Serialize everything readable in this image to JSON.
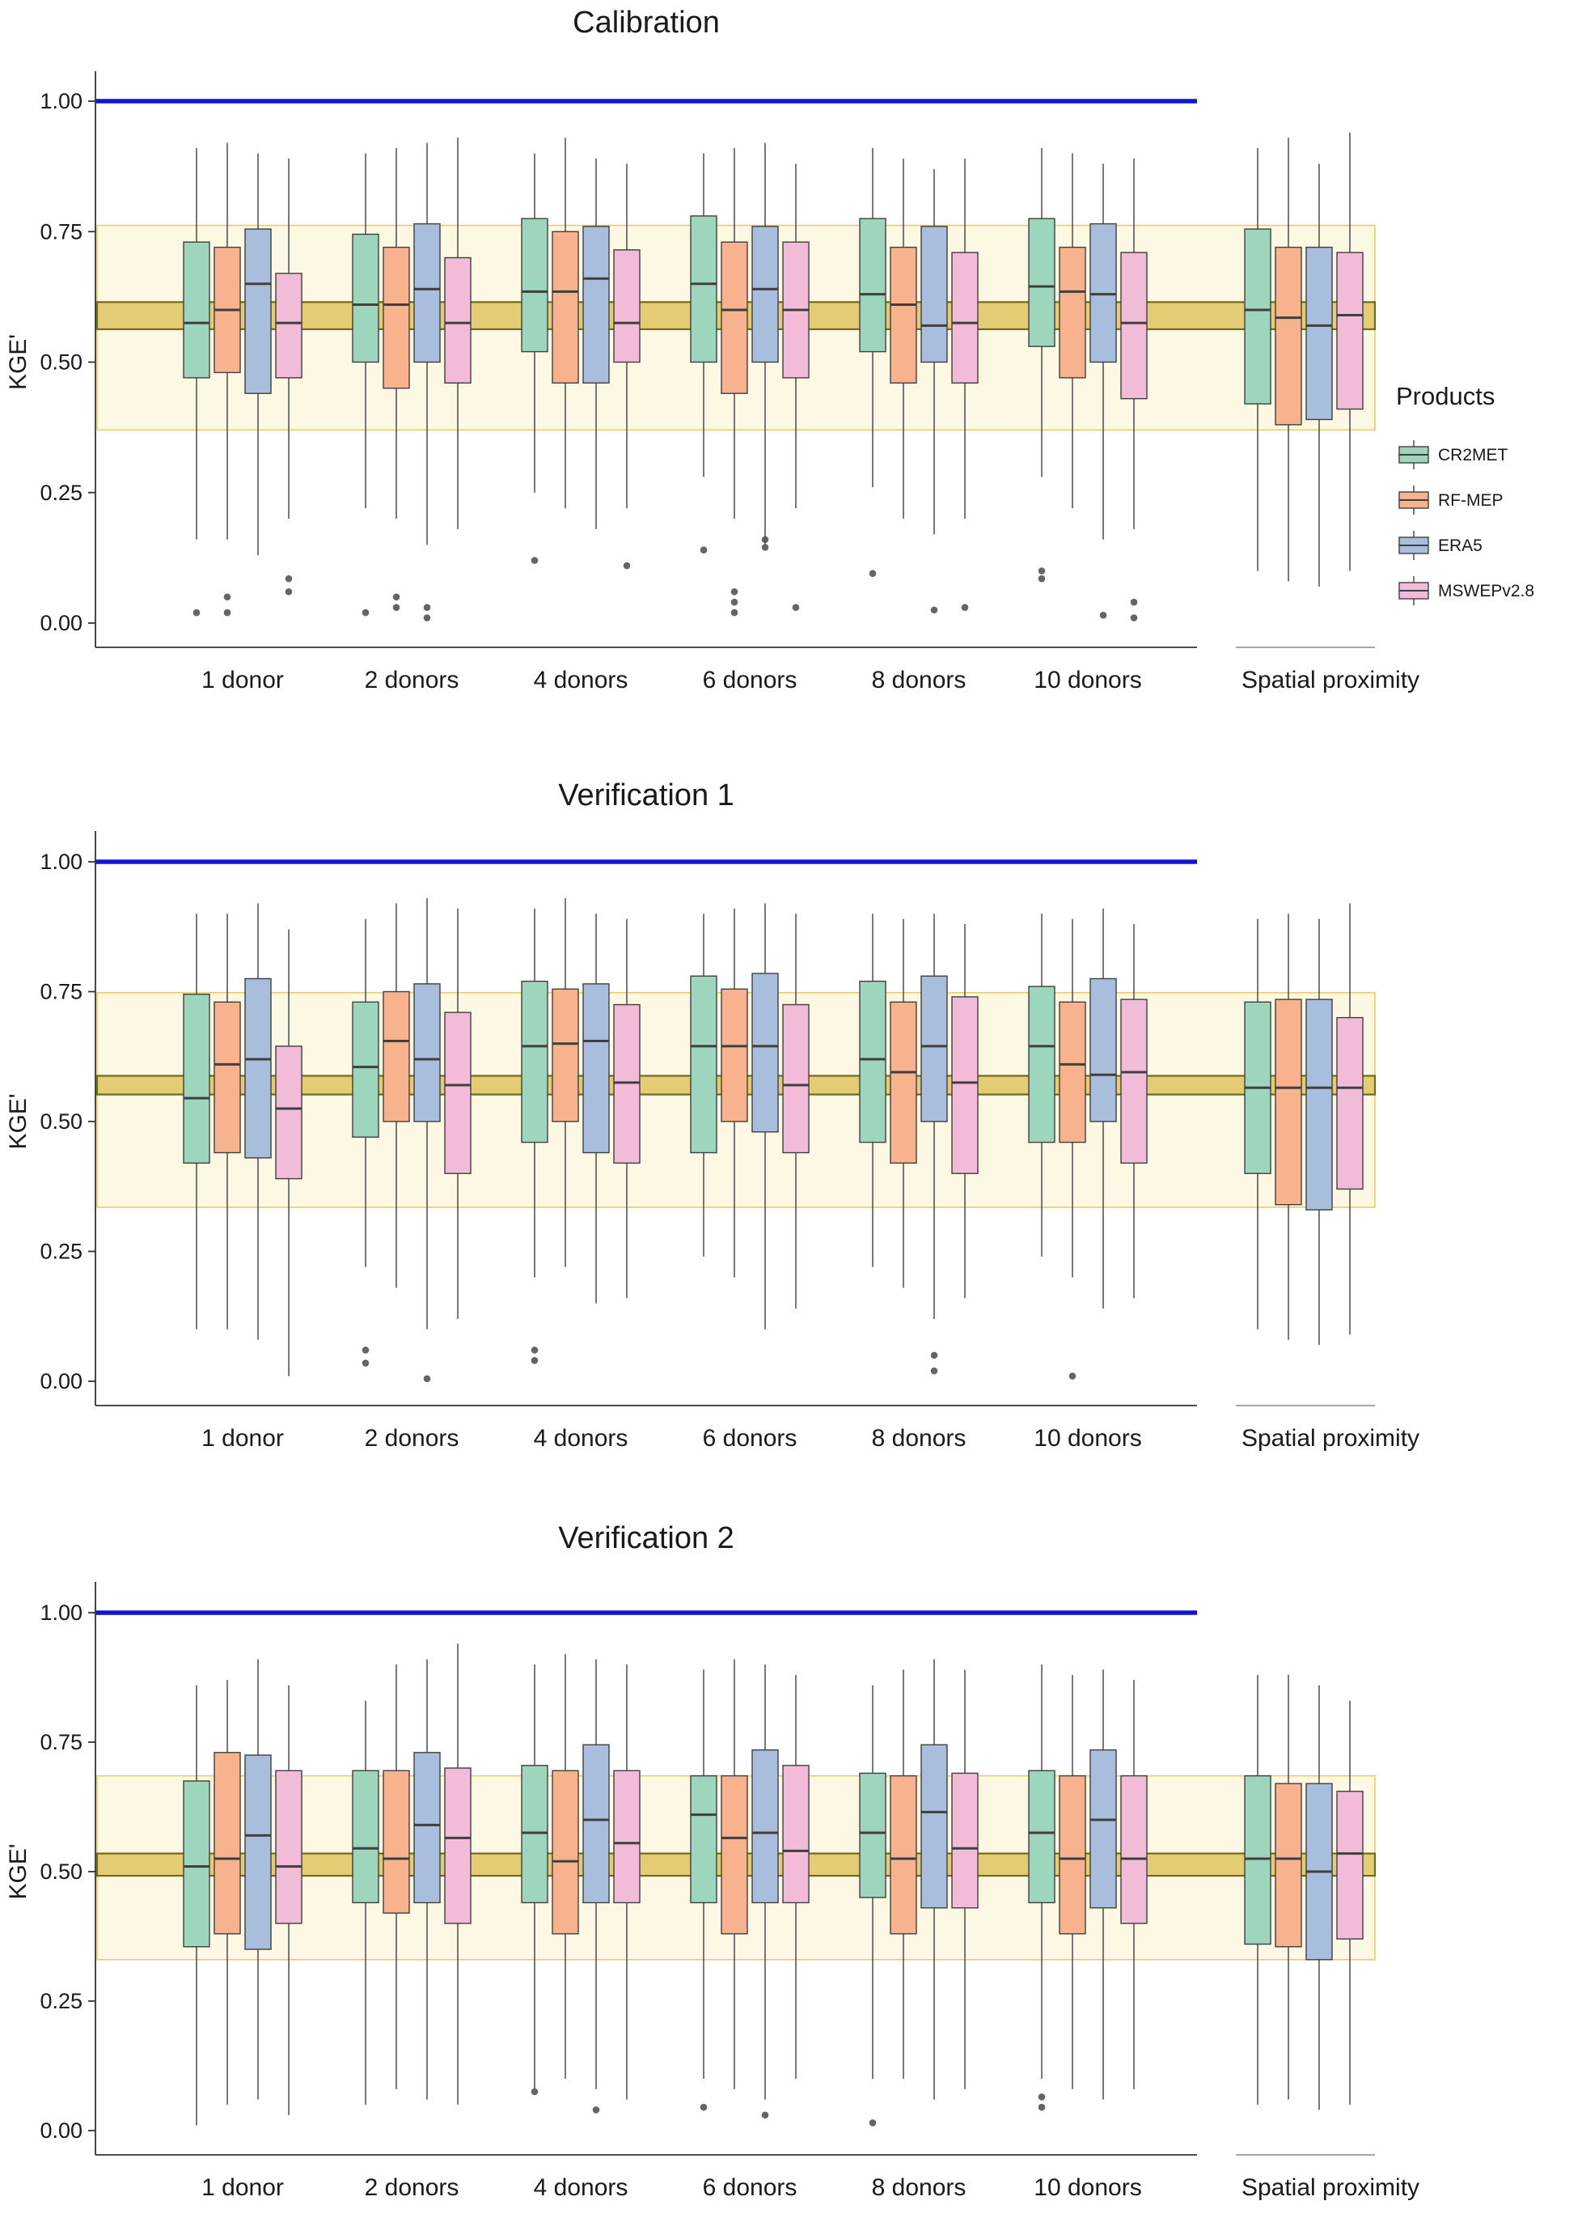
{
  "legend": {
    "title": "Products"
  },
  "products": [
    {
      "label": "CR2MET",
      "color": "#9dd6bd"
    },
    {
      "label": "RF-MEP",
      "color": "#f8b28e"
    },
    {
      "label": "ERA5",
      "color": "#a9bedc"
    },
    {
      "label": "MSWEPv2.8",
      "color": "#f2bcd9"
    }
  ],
  "colors": {
    "reference_blue": "#1414d4",
    "band_fill": "#fcf3cc",
    "band_border": "#edcb66",
    "inner_band_fill": "#dcc157",
    "inner_band_border": "#6f6b1e",
    "box_stroke": "#3f3f3f",
    "outlier": "#545454",
    "axis": "#333333"
  },
  "axis": {
    "y_label": "KGE'",
    "ticks": [
      {
        "label": "1.00",
        "value": 1.0
      },
      {
        "label": "0.75",
        "value": 0.75
      },
      {
        "label": "0.50",
        "value": 0.5
      },
      {
        "label": "0.25",
        "value": 0.25
      },
      {
        "label": "0.00",
        "value": 0.0
      }
    ]
  },
  "chart_data": [
    {
      "type": "boxplot",
      "title": "Calibration",
      "ylabel": "KGE'",
      "ylim": [
        0,
        1.0
      ],
      "reference_line": 1.0,
      "benchmark_band": {
        "outer": [
          0.37,
          0.762
        ],
        "inner": [
          0.563,
          0.615
        ]
      },
      "categories": [
        "1 donor",
        "2 donors",
        "4 donors",
        "6 donors",
        "8 donors",
        "10 donors",
        "Spatial proximity"
      ],
      "series": [
        {
          "name": "CR2MET",
          "boxes": [
            [
              0.16,
              0.47,
              0.575,
              0.73,
              0.91
            ],
            [
              0.22,
              0.5,
              0.61,
              0.745,
              0.9
            ],
            [
              0.25,
              0.52,
              0.635,
              0.775,
              0.9
            ],
            [
              0.28,
              0.5,
              0.65,
              0.78,
              0.9
            ],
            [
              0.26,
              0.52,
              0.63,
              0.775,
              0.91
            ],
            [
              0.28,
              0.53,
              0.645,
              0.775,
              0.91
            ],
            [
              0.1,
              0.42,
              0.6,
              0.755,
              0.91
            ]
          ],
          "outliers": [
            [
              0.02
            ],
            [
              0.02
            ],
            [
              0.12
            ],
            [
              0.14
            ],
            [
              0.095
            ],
            [
              0.085,
              0.1
            ],
            []
          ]
        },
        {
          "name": "RF-MEP",
          "boxes": [
            [
              0.16,
              0.48,
              0.6,
              0.72,
              0.92
            ],
            [
              0.2,
              0.45,
              0.61,
              0.72,
              0.91
            ],
            [
              0.22,
              0.46,
              0.635,
              0.75,
              0.93
            ],
            [
              0.2,
              0.44,
              0.6,
              0.73,
              0.91
            ],
            [
              0.2,
              0.46,
              0.61,
              0.72,
              0.89
            ],
            [
              0.22,
              0.47,
              0.635,
              0.72,
              0.9
            ],
            [
              0.08,
              0.38,
              0.585,
              0.72,
              0.93
            ]
          ],
          "outliers": [
            [
              0.02,
              0.05
            ],
            [
              0.03,
              0.05
            ],
            [],
            [
              0.02,
              0.04,
              0.06
            ],
            [],
            [],
            []
          ]
        },
        {
          "name": "ERA5",
          "boxes": [
            [
              0.13,
              0.44,
              0.65,
              0.755,
              0.9
            ],
            [
              0.15,
              0.5,
              0.64,
              0.765,
              0.92
            ],
            [
              0.18,
              0.46,
              0.66,
              0.76,
              0.89
            ],
            [
              0.15,
              0.5,
              0.64,
              0.76,
              0.92
            ],
            [
              0.17,
              0.5,
              0.57,
              0.76,
              0.87
            ],
            [
              0.16,
              0.5,
              0.63,
              0.765,
              0.88
            ],
            [
              0.07,
              0.39,
              0.57,
              0.72,
              0.88
            ]
          ],
          "outliers": [
            [],
            [
              0.01,
              0.03
            ],
            [],
            [
              0.145,
              0.16
            ],
            [
              0.025
            ],
            [
              0.015
            ],
            []
          ]
        },
        {
          "name": "MSWEPv2.8",
          "boxes": [
            [
              0.2,
              0.47,
              0.575,
              0.67,
              0.89
            ],
            [
              0.18,
              0.46,
              0.575,
              0.7,
              0.93
            ],
            [
              0.22,
              0.5,
              0.575,
              0.715,
              0.88
            ],
            [
              0.22,
              0.47,
              0.6,
              0.73,
              0.88
            ],
            [
              0.2,
              0.46,
              0.575,
              0.71,
              0.89
            ],
            [
              0.18,
              0.43,
              0.575,
              0.71,
              0.89
            ],
            [
              0.1,
              0.41,
              0.59,
              0.71,
              0.94
            ]
          ],
          "outliers": [
            [
              0.06,
              0.085
            ],
            [],
            [
              0.11
            ],
            [
              0.03
            ],
            [
              0.03
            ],
            [
              0.01,
              0.04
            ],
            []
          ]
        }
      ]
    },
    {
      "type": "boxplot",
      "title": "Verification 1",
      "ylabel": "KGE'",
      "ylim": [
        0,
        1.0
      ],
      "reference_line": 1.0,
      "benchmark_band": {
        "outer": [
          0.335,
          0.748
        ],
        "inner": [
          0.552,
          0.588
        ]
      },
      "categories": [
        "1 donor",
        "2 donors",
        "4 donors",
        "6 donors",
        "8 donors",
        "10 donors",
        "Spatial proximity"
      ],
      "series": [
        {
          "name": "CR2MET",
          "boxes": [
            [
              0.1,
              0.42,
              0.545,
              0.745,
              0.9
            ],
            [
              0.22,
              0.47,
              0.605,
              0.73,
              0.89
            ],
            [
              0.2,
              0.46,
              0.645,
              0.77,
              0.91
            ],
            [
              0.24,
              0.44,
              0.645,
              0.78,
              0.9
            ],
            [
              0.22,
              0.46,
              0.62,
              0.77,
              0.9
            ],
            [
              0.24,
              0.46,
              0.645,
              0.76,
              0.9
            ],
            [
              0.1,
              0.4,
              0.565,
              0.73,
              0.89
            ]
          ],
          "outliers": [
            [],
            [
              0.035,
              0.06
            ],
            [
              0.04,
              0.06
            ],
            [],
            [],
            [],
            []
          ]
        },
        {
          "name": "RF-MEP",
          "boxes": [
            [
              0.1,
              0.44,
              0.61,
              0.73,
              0.9
            ],
            [
              0.18,
              0.5,
              0.655,
              0.75,
              0.92
            ],
            [
              0.22,
              0.5,
              0.65,
              0.755,
              0.93
            ],
            [
              0.2,
              0.5,
              0.645,
              0.755,
              0.91
            ],
            [
              0.18,
              0.42,
              0.595,
              0.73,
              0.89
            ],
            [
              0.2,
              0.46,
              0.61,
              0.73,
              0.89
            ],
            [
              0.08,
              0.34,
              0.565,
              0.735,
              0.9
            ]
          ],
          "outliers": [
            [],
            [],
            [],
            [],
            [],
            [
              0.01
            ],
            []
          ]
        },
        {
          "name": "ERA5",
          "boxes": [
            [
              0.08,
              0.43,
              0.62,
              0.775,
              0.92
            ],
            [
              0.1,
              0.5,
              0.62,
              0.765,
              0.93
            ],
            [
              0.15,
              0.44,
              0.655,
              0.765,
              0.9
            ],
            [
              0.1,
              0.48,
              0.645,
              0.785,
              0.92
            ],
            [
              0.12,
              0.5,
              0.645,
              0.78,
              0.9
            ],
            [
              0.14,
              0.5,
              0.59,
              0.775,
              0.91
            ],
            [
              0.07,
              0.33,
              0.565,
              0.735,
              0.89
            ]
          ],
          "outliers": [
            [],
            [
              0.005
            ],
            [],
            [],
            [
              0.02,
              0.05
            ],
            [],
            []
          ]
        },
        {
          "name": "MSWEPv2.8",
          "boxes": [
            [
              0.01,
              0.39,
              0.525,
              0.645,
              0.87
            ],
            [
              0.12,
              0.4,
              0.57,
              0.71,
              0.91
            ],
            [
              0.16,
              0.42,
              0.575,
              0.725,
              0.89
            ],
            [
              0.14,
              0.44,
              0.57,
              0.725,
              0.9
            ],
            [
              0.16,
              0.4,
              0.575,
              0.74,
              0.88
            ],
            [
              0.16,
              0.42,
              0.595,
              0.735,
              0.88
            ],
            [
              0.09,
              0.37,
              0.565,
              0.7,
              0.92
            ]
          ],
          "outliers": [
            [],
            [],
            [],
            [],
            [],
            [],
            []
          ]
        }
      ]
    },
    {
      "type": "boxplot",
      "title": "Verification 2",
      "ylabel": "KGE'",
      "ylim": [
        0,
        1.0
      ],
      "reference_line": 1.0,
      "benchmark_band": {
        "outer": [
          0.33,
          0.685
        ],
        "inner": [
          0.492,
          0.535
        ]
      },
      "categories": [
        "1 donor",
        "2 donors",
        "4 donors",
        "6 donors",
        "8 donors",
        "10 donors",
        "Spatial proximity"
      ],
      "series": [
        {
          "name": "CR2MET",
          "boxes": [
            [
              0.01,
              0.355,
              0.51,
              0.675,
              0.86
            ],
            [
              0.05,
              0.44,
              0.545,
              0.695,
              0.83
            ],
            [
              0.08,
              0.44,
              0.575,
              0.705,
              0.9
            ],
            [
              0.1,
              0.44,
              0.61,
              0.685,
              0.89
            ],
            [
              0.1,
              0.45,
              0.575,
              0.69,
              0.86
            ],
            [
              0.1,
              0.44,
              0.575,
              0.695,
              0.9
            ],
            [
              0.05,
              0.36,
              0.525,
              0.685,
              0.88
            ]
          ],
          "outliers": [
            [],
            [],
            [
              0.075
            ],
            [
              0.045
            ],
            [
              0.015
            ],
            [
              0.045,
              0.065
            ],
            []
          ]
        },
        {
          "name": "RF-MEP",
          "boxes": [
            [
              0.05,
              0.38,
              0.525,
              0.73,
              0.87
            ],
            [
              0.08,
              0.42,
              0.525,
              0.695,
              0.9
            ],
            [
              0.1,
              0.38,
              0.52,
              0.695,
              0.92
            ],
            [
              0.08,
              0.38,
              0.565,
              0.685,
              0.91
            ],
            [
              0.1,
              0.38,
              0.525,
              0.685,
              0.89
            ],
            [
              0.08,
              0.38,
              0.525,
              0.685,
              0.88
            ],
            [
              0.06,
              0.355,
              0.525,
              0.67,
              0.88
            ]
          ],
          "outliers": [
            [],
            [],
            [],
            [],
            [],
            [],
            []
          ]
        },
        {
          "name": "ERA5",
          "boxes": [
            [
              0.06,
              0.35,
              0.57,
              0.725,
              0.91
            ],
            [
              0.06,
              0.44,
              0.59,
              0.73,
              0.91
            ],
            [
              0.08,
              0.44,
              0.6,
              0.745,
              0.91
            ],
            [
              0.06,
              0.44,
              0.575,
              0.735,
              0.9
            ],
            [
              0.06,
              0.43,
              0.615,
              0.745,
              0.91
            ],
            [
              0.06,
              0.43,
              0.6,
              0.735,
              0.89
            ],
            [
              0.04,
              0.33,
              0.5,
              0.67,
              0.86
            ]
          ],
          "outliers": [
            [],
            [],
            [
              0.04
            ],
            [
              0.03
            ],
            [],
            [],
            []
          ]
        },
        {
          "name": "MSWEPv2.8",
          "boxes": [
            [
              0.03,
              0.4,
              0.51,
              0.695,
              0.86
            ],
            [
              0.05,
              0.4,
              0.565,
              0.7,
              0.94
            ],
            [
              0.06,
              0.44,
              0.555,
              0.695,
              0.9
            ],
            [
              0.1,
              0.44,
              0.54,
              0.705,
              0.88
            ],
            [
              0.08,
              0.43,
              0.545,
              0.69,
              0.89
            ],
            [
              0.08,
              0.4,
              0.525,
              0.685,
              0.87
            ],
            [
              0.05,
              0.37,
              0.535,
              0.655,
              0.83
            ]
          ],
          "outliers": [
            [],
            [],
            [],
            [],
            [],
            [],
            []
          ]
        }
      ]
    }
  ]
}
